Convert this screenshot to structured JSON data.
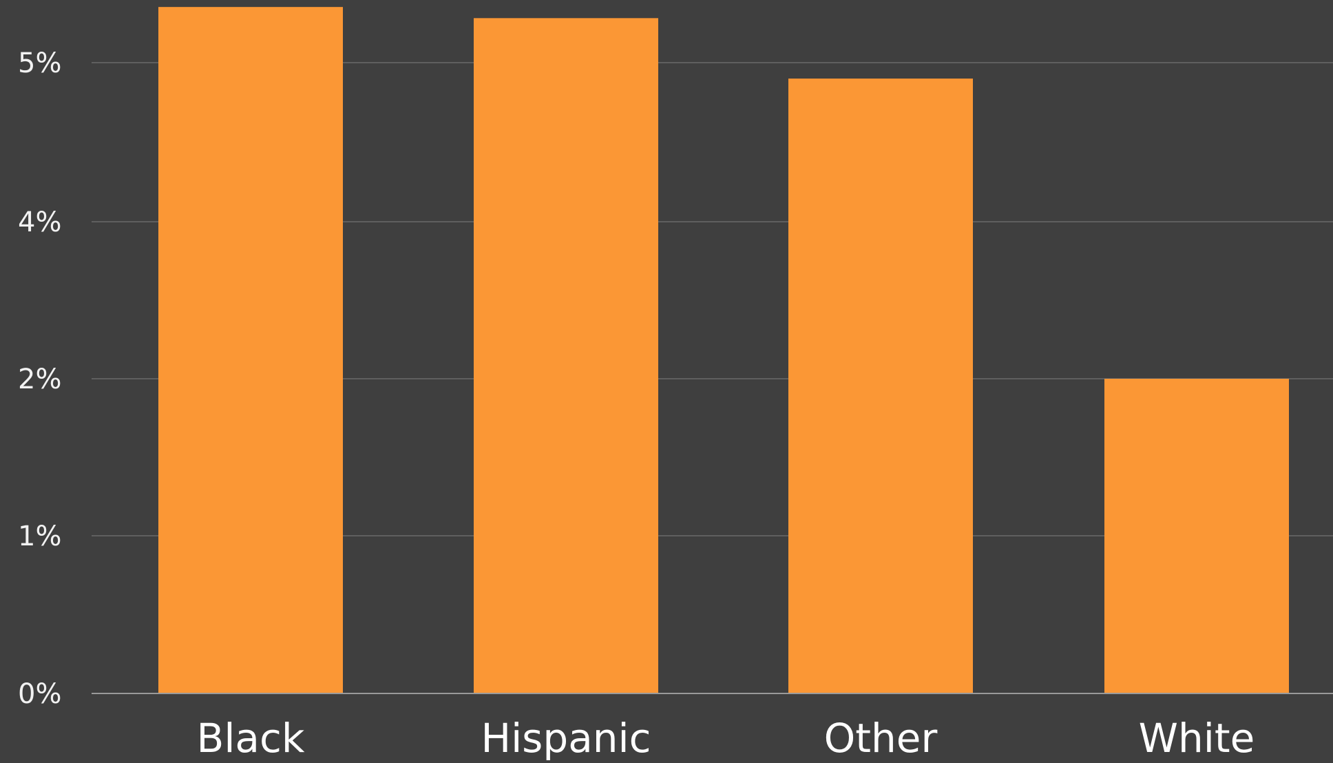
{
  "chart_data": {
    "type": "bar",
    "categories": [
      "Black",
      "Hispanic",
      "Other",
      "White"
    ],
    "values": [
      5.35,
      5.28,
      4.9,
      2.0
    ],
    "y_ticks": [
      {
        "value": 0,
        "label": "0%"
      },
      {
        "value": 1,
        "label": "1%"
      },
      {
        "value": 2,
        "label": "2%"
      },
      {
        "value": 4,
        "label": "4%"
      },
      {
        "value": 5,
        "label": "5%"
      }
    ],
    "title": "",
    "xlabel": "",
    "ylabel": "",
    "grid": true,
    "colors": {
      "background": "#3f3f3f",
      "bar": "#fb9735",
      "grid": "#5f5f5f",
      "axis": "#9a9a9a"
    }
  }
}
